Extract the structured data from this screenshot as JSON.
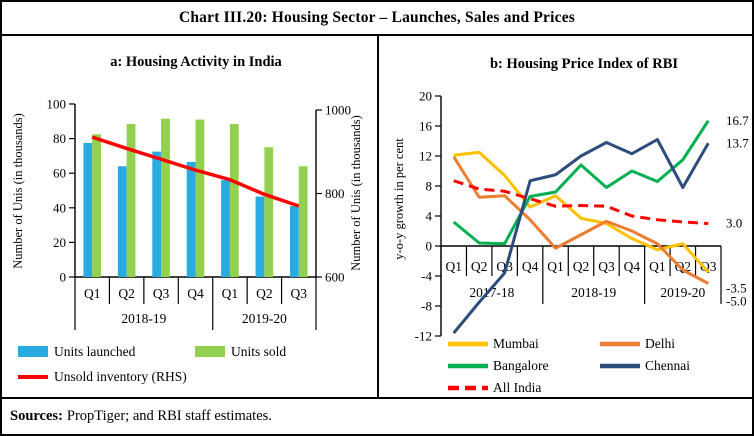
{
  "figure_title": "Chart III.20: Housing Sector – Launches, Sales and Prices",
  "sources": {
    "label": "Sources:",
    "text": "PropTiger; and RBI staff estimates."
  },
  "chart_data": [
    {
      "id": "housing-activity",
      "type": "bar",
      "title": "a: Housing Activity in India",
      "ylabel_left": "Number of Unis (in thousands)",
      "ylabel_right": "Number of Unis (in thousands)",
      "categories": [
        "Q1",
        "Q2",
        "Q3",
        "Q4",
        "Q1",
        "Q2",
        "Q3"
      ],
      "category_groups": [
        {
          "label": "2018-19",
          "count": 4
        },
        {
          "label": "2019-20",
          "count": 3
        }
      ],
      "ylim_left": [
        0,
        100
      ],
      "yticks_left": [
        0,
        20,
        40,
        60,
        80,
        100
      ],
      "ylim_right": [
        600,
        1000
      ],
      "yticks_right": [
        600,
        800,
        1000
      ],
      "grid": false,
      "legend_position": "bottom",
      "series": [
        {
          "name": "Units launched",
          "type": "bar",
          "axis": "left",
          "color": "#29abe2",
          "values": [
            77.5,
            64,
            72.5,
            66.5,
            56,
            46.5,
            41
          ]
        },
        {
          "name": "Units sold",
          "type": "bar",
          "axis": "left",
          "color": "#92d050",
          "values": [
            82.5,
            88.5,
            91.5,
            91,
            88.5,
            75,
            64
          ]
        },
        {
          "name": "Unsold inventory (RHS)",
          "type": "line",
          "axis": "right",
          "color": "#ff0000",
          "values": [
            935,
            908,
            882,
            856,
            833,
            798,
            770
          ]
        }
      ]
    },
    {
      "id": "housing-price-index",
      "type": "line",
      "title": "b: Housing Price Index of RBI",
      "ylabel": "y-o-y growth in per cent",
      "categories": [
        "Q1",
        "Q2",
        "Q3",
        "Q4",
        "Q1",
        "Q2",
        "Q3",
        "Q4",
        "Q1",
        "Q2",
        "Q3"
      ],
      "category_groups": [
        {
          "label": "2017-18",
          "count": 4
        },
        {
          "label": "2018-19",
          "count": 4
        },
        {
          "label": "2019-20",
          "count": 3
        }
      ],
      "ylim": [
        -12,
        20
      ],
      "yticks": [
        -12,
        -8,
        -4,
        0,
        4,
        8,
        12,
        16,
        20
      ],
      "grid": false,
      "legend_position": "bottom",
      "series": [
        {
          "name": "Mumbai",
          "color": "#ffc000",
          "dash": false,
          "values": [
            12.1,
            12.5,
            9.4,
            5.2,
            6.7,
            3.7,
            3.0,
            1.0,
            -0.5,
            0.3,
            -3.5
          ],
          "end_label": "-3.5"
        },
        {
          "name": "Delhi",
          "color": "#ed7d31",
          "dash": false,
          "values": [
            11.9,
            6.5,
            6.7,
            3.5,
            -0.3,
            1.5,
            3.3,
            2.0,
            0.3,
            -3.2,
            -5.0
          ],
          "end_label": "-5.0"
        },
        {
          "name": "Bangalore",
          "color": "#00b050",
          "dash": false,
          "values": [
            3.2,
            0.4,
            0.3,
            6.6,
            7.2,
            10.8,
            7.8,
            10.0,
            8.6,
            11.5,
            16.7
          ],
          "end_label": "16.7"
        },
        {
          "name": "Chennai",
          "color": "#2e4d7d",
          "dash": false,
          "values": [
            -11.6,
            -7.5,
            -3.6,
            8.7,
            9.5,
            12.0,
            13.8,
            12.3,
            14.2,
            7.8,
            13.7
          ],
          "end_label": "13.7"
        },
        {
          "name": "All India",
          "color": "#ff0000",
          "dash": true,
          "values": [
            8.7,
            7.6,
            7.3,
            6.3,
            5.3,
            5.4,
            5.3,
            4.0,
            3.5,
            3.2,
            3.0
          ],
          "end_label": "3.0"
        }
      ]
    }
  ]
}
